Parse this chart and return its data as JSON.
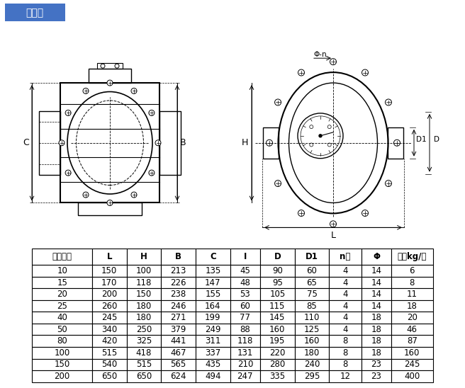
{
  "title": "铸铁型",
  "title_bg": "#4472C4",
  "title_color": "#FFFFFF",
  "table_headers": [
    "公称通径",
    "L",
    "H",
    "B",
    "C",
    "I",
    "D",
    "D1",
    "n个",
    "Φ",
    "重量kg/台"
  ],
  "table_data": [
    [
      10,
      150,
      100,
      213,
      135,
      45,
      90,
      60,
      4,
      14,
      6
    ],
    [
      15,
      170,
      118,
      226,
      147,
      48,
      95,
      65,
      4,
      14,
      8
    ],
    [
      20,
      200,
      150,
      238,
      155,
      53,
      105,
      75,
      4,
      14,
      11
    ],
    [
      25,
      260,
      180,
      246,
      164,
      60,
      115,
      85,
      4,
      14,
      18
    ],
    [
      40,
      245,
      180,
      271,
      199,
      77,
      145,
      110,
      4,
      18,
      20
    ],
    [
      50,
      340,
      250,
      379,
      249,
      88,
      160,
      125,
      4,
      18,
      46
    ],
    [
      80,
      420,
      325,
      441,
      311,
      118,
      195,
      160,
      8,
      18,
      87
    ],
    [
      100,
      515,
      418,
      467,
      337,
      131,
      220,
      180,
      8,
      18,
      160
    ],
    [
      150,
      540,
      515,
      565,
      435,
      210,
      280,
      240,
      8,
      23,
      245
    ],
    [
      200,
      650,
      650,
      624,
      494,
      247,
      335,
      295,
      12,
      23,
      400
    ]
  ],
  "bg_color": "#FFFFFF",
  "table_header_bg": "#FFFFFF",
  "table_row_bg": "#FFFFFF",
  "border_color": "#000000",
  "text_color": "#000000",
  "diagram_bg": "#FFFFFF"
}
